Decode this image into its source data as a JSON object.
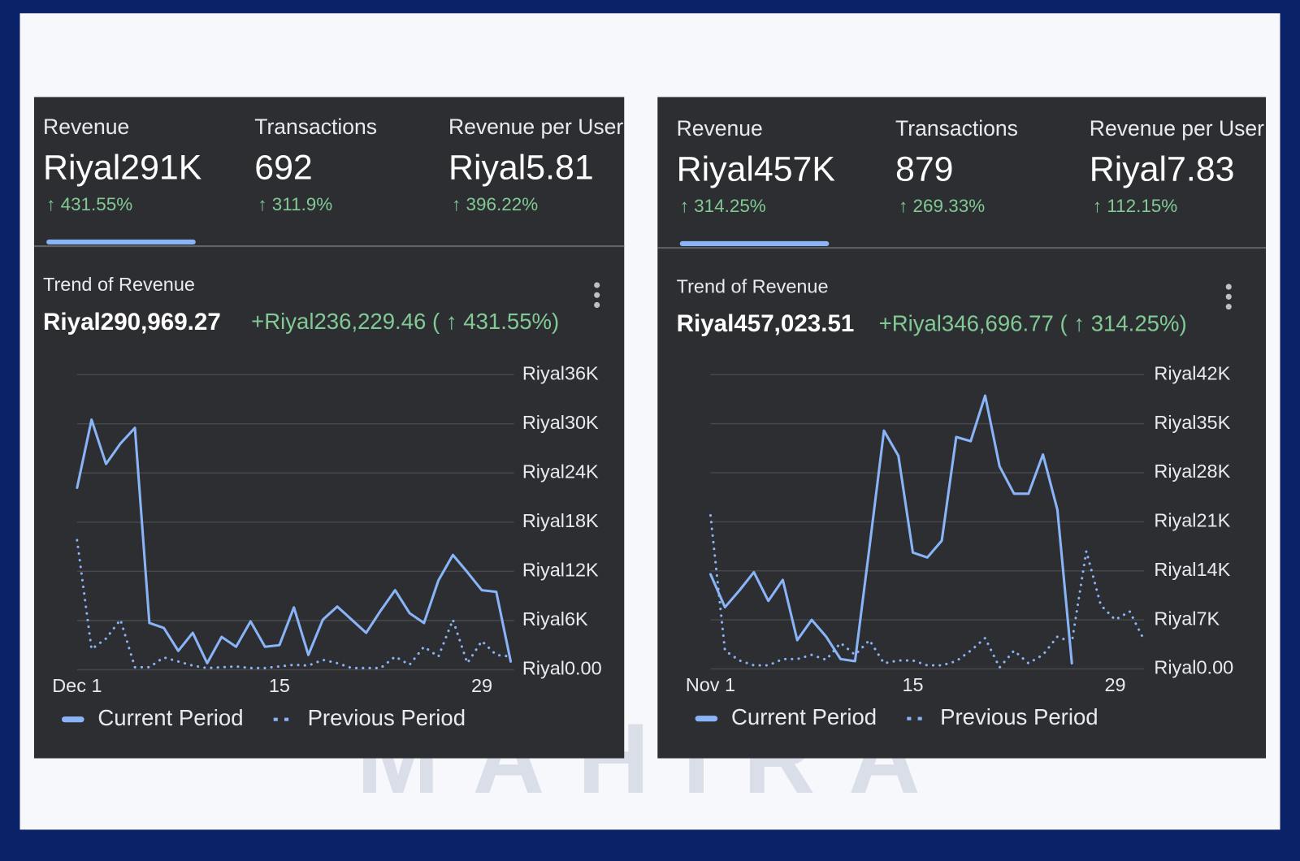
{
  "watermark": "MAHIRA",
  "panels": [
    {
      "metrics": [
        {
          "label": "Revenue",
          "value": "Riyal291K",
          "change": "↑ 431.55%"
        },
        {
          "label": "Transactions",
          "value": "692",
          "change": "↑ 311.9%"
        },
        {
          "label": "Revenue per User",
          "value": "Riyal5.81",
          "change": "↑ 396.22%"
        }
      ],
      "trend_title": "Trend of Revenue",
      "total": "Riyal290,969.27",
      "delta": "+Riyal236,229.46 ( ↑ 431.55%)"
    },
    {
      "metrics": [
        {
          "label": "Revenue",
          "value": "Riyal457K",
          "change": "↑ 314.25%"
        },
        {
          "label": "Transactions",
          "value": "879",
          "change": "↑ 269.33%"
        },
        {
          "label": "Revenue per User",
          "value": "Riyal7.83",
          "change": "↑ 112.15%"
        }
      ],
      "trend_title": "Trend of Revenue",
      "total": "Riyal457,023.51",
      "delta": "+Riyal346,696.77 ( ↑ 314.25%)"
    }
  ],
  "chart_data": [
    {
      "type": "line",
      "x": [
        1,
        2,
        3,
        4,
        5,
        6,
        7,
        8,
        9,
        10,
        11,
        12,
        13,
        14,
        15,
        16,
        17,
        18,
        19,
        20,
        21,
        22,
        23,
        24,
        25,
        26,
        27,
        28,
        29,
        30,
        31
      ],
      "xlim": [
        1,
        31
      ],
      "xticks": [
        {
          "value": 1,
          "label": "Dec 1"
        },
        15,
        29
      ],
      "ylim": [
        0,
        36000
      ],
      "yticks": [
        {
          "value": 0,
          "label": "Riyal0.00"
        },
        {
          "value": 6000,
          "label": "Riyal6K"
        },
        {
          "value": 12000,
          "label": "Riyal12K"
        },
        {
          "value": 18000,
          "label": "Riyal18K"
        },
        {
          "value": 24000,
          "label": "Riyal24K"
        },
        {
          "value": 30000,
          "label": "Riyal30K"
        },
        {
          "value": 36000,
          "label": "Riyal36K"
        }
      ],
      "grid": true,
      "legend": "bottom-left",
      "series": [
        {
          "name": "Current Period",
          "color": "#8ab4f8",
          "style": "solid",
          "values": [
            22200,
            30500,
            25100,
            27600,
            29500,
            5700,
            5100,
            2300,
            4500,
            800,
            4000,
            2800,
            5900,
            2800,
            3000,
            7600,
            1800,
            6100,
            7700,
            6100,
            4500,
            7200,
            9700,
            6900,
            5700,
            10900,
            14000,
            11900,
            9700,
            9500,
            1000
          ]
        },
        {
          "name": "Previous Period",
          "color": "#8ab4f8",
          "style": "dotted",
          "values": [
            15800,
            2500,
            3800,
            6100,
            300,
            300,
            1500,
            1000,
            500,
            200,
            300,
            400,
            200,
            200,
            400,
            600,
            500,
            1200,
            800,
            200,
            200,
            200,
            1600,
            600,
            2800,
            1600,
            6100,
            800,
            3500,
            1800,
            1600
          ]
        }
      ]
    },
    {
      "type": "line",
      "x": [
        1,
        2,
        3,
        4,
        5,
        6,
        7,
        8,
        9,
        10,
        11,
        12,
        13,
        14,
        15,
        16,
        17,
        18,
        19,
        20,
        21,
        22,
        23,
        24,
        25,
        26,
        27,
        28,
        29,
        30,
        31
      ],
      "xlim": [
        1,
        31
      ],
      "xticks": [
        {
          "value": 1,
          "label": "Nov 1"
        },
        15,
        29
      ],
      "ylim": [
        0,
        42000
      ],
      "yticks": [
        {
          "value": 0,
          "label": "Riyal0.00"
        },
        {
          "value": 7000,
          "label": "Riyal7K"
        },
        {
          "value": 14000,
          "label": "Riyal14K"
        },
        {
          "value": 21000,
          "label": "Riyal21K"
        },
        {
          "value": 28000,
          "label": "Riyal28K"
        },
        {
          "value": 35000,
          "label": "Riyal35K"
        },
        {
          "value": 42000,
          "label": "Riyal42K"
        }
      ],
      "grid": true,
      "legend": "bottom-left",
      "series": [
        {
          "name": "Current Period",
          "color": "#8ab4f8",
          "style": "solid",
          "values": [
            13500,
            8800,
            11200,
            13800,
            9700,
            12700,
            4100,
            7000,
            4600,
            1400,
            1100,
            17400,
            34000,
            30400,
            16600,
            15900,
            18300,
            33100,
            32500,
            39000,
            28900,
            25000,
            25000,
            30600,
            22700,
            800,
            null,
            null,
            null,
            null,
            null
          ]
        },
        {
          "name": "Previous Period",
          "color": "#8ab4f8",
          "style": "dotted",
          "values": [
            21900,
            2600,
            1200,
            500,
            500,
            1400,
            1400,
            2000,
            1300,
            3700,
            2000,
            4100,
            800,
            1200,
            1200,
            500,
            500,
            1100,
            2600,
            4400,
            200,
            2600,
            800,
            2000,
            4600,
            3800,
            16800,
            9100,
            7000,
            8200,
            4100
          ]
        }
      ]
    }
  ]
}
